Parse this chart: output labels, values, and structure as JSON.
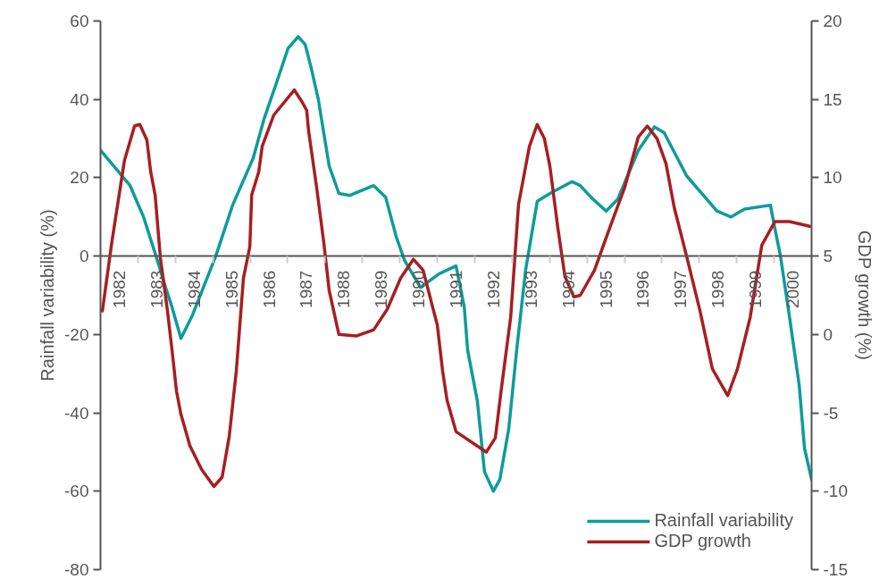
{
  "chart_data": {
    "type": "line",
    "xlabel": null,
    "ylabel": "Rainfall variability (%)",
    "y2label": "GDP growth (%)",
    "xlim": [
      1982,
      2001
    ],
    "xticks": [
      {
        "value": 1982.5,
        "label": "1982"
      },
      {
        "value": 1983.5,
        "label": "1983"
      },
      {
        "value": 1984.5,
        "label": "1984"
      },
      {
        "value": 1985.5,
        "label": "1985"
      },
      {
        "value": 1986.5,
        "label": "1986"
      },
      {
        "value": 1987.5,
        "label": "1987"
      },
      {
        "value": 1988.5,
        "label": "1988"
      },
      {
        "value": 1989.5,
        "label": "1989"
      },
      {
        "value": 1990.5,
        "label": "1990"
      },
      {
        "value": 1991.5,
        "label": "1991"
      },
      {
        "value": 1992.5,
        "label": "1992"
      },
      {
        "value": 1993.5,
        "label": "1993"
      },
      {
        "value": 1994.5,
        "label": "1994"
      },
      {
        "value": 1995.5,
        "label": "1995"
      },
      {
        "value": 1996.5,
        "label": "1996"
      },
      {
        "value": 1997.5,
        "label": "1997"
      },
      {
        "value": 1998.5,
        "label": "1998"
      },
      {
        "value": 1999.5,
        "label": "1999"
      },
      {
        "value": 2000.5,
        "label": "2000"
      },
      {
        "value": 1983,
        "label": null
      },
      {
        "value": 1984,
        "label": null
      },
      {
        "value": 1985,
        "label": null
      },
      {
        "value": 1986,
        "label": null
      },
      {
        "value": 1987,
        "label": null
      },
      {
        "value": 1988,
        "label": null
      },
      {
        "value": 1989,
        "label": null
      },
      {
        "value": 1990,
        "label": null
      },
      {
        "value": 1991,
        "label": null
      },
      {
        "value": 1992,
        "label": null
      },
      {
        "value": 1993,
        "label": null
      },
      {
        "value": 1994,
        "label": null
      },
      {
        "value": 1995,
        "label": null
      },
      {
        "value": 1996,
        "label": null
      },
      {
        "value": 1997,
        "label": null
      },
      {
        "value": 1998,
        "label": null
      },
      {
        "value": 1999,
        "label": null
      },
      {
        "value": 2000,
        "label": null
      }
    ],
    "ylim": [
      -80,
      60
    ],
    "yticks": [
      -80,
      -60,
      -40,
      -20,
      0,
      20,
      40,
      60
    ],
    "y2lim": [
      -15,
      20
    ],
    "y2ticks": [
      -15,
      -10,
      -5,
      0,
      5,
      10,
      15,
      20
    ],
    "grid": false,
    "legend": "bottom right",
    "marker": "none",
    "line_style": "solid",
    "series": [
      {
        "name": "Rainfall variability",
        "color": "#0e9c9a",
        "x": [
          1982.0,
          1982.79,
          1983.15,
          1983.5,
          1983.74,
          1983.91,
          1984.15,
          1984.46,
          1985.08,
          1985.53,
          1986.08,
          1986.37,
          1986.73,
          1987.01,
          1987.28,
          1987.47,
          1987.63,
          1987.82,
          1988.11,
          1988.37,
          1988.66,
          1989.3,
          1989.62,
          1989.9,
          1990.12,
          1990.55,
          1991.05,
          1991.5,
          1991.72,
          1991.81,
          1992.07,
          1992.26,
          1992.5,
          1992.67,
          1992.91,
          1993.12,
          1993.36,
          1993.67,
          1994.01,
          1994.6,
          1994.82,
          1995.11,
          1995.51,
          1995.82,
          1996.37,
          1996.8,
          1997.06,
          1997.66,
          1998.47,
          1998.85,
          1999.21,
          1999.9,
          2000.02,
          2000.17,
          2000.41,
          2000.67,
          2000.81,
          2001.0
        ],
        "values": [
          27,
          18,
          10,
          -0.5,
          -8,
          -13,
          -21,
          -15,
          0,
          13,
          25,
          35,
          45,
          53,
          56,
          54,
          48,
          40,
          23,
          16,
          15.5,
          18,
          15,
          5,
          -1,
          -8,
          -4.5,
          -2.5,
          -13,
          -24,
          -37,
          -55,
          -60,
          -57,
          -44,
          -24,
          -3.5,
          14,
          16,
          19,
          18,
          15,
          11.5,
          14.5,
          27,
          33,
          31.5,
          20.5,
          11.5,
          10,
          12,
          13,
          7,
          0,
          -15.5,
          -33,
          -49,
          -57
        ]
      },
      {
        "name": "GDP growth",
        "color": "#a81e22",
        "axis": "y2",
        "x": [
          1982.05,
          1982.31,
          1982.64,
          1982.91,
          1983.05,
          1983.24,
          1983.34,
          1983.46,
          1983.6,
          1983.79,
          1983.93,
          1984.03,
          1984.15,
          1984.39,
          1984.7,
          1985.03,
          1985.25,
          1985.44,
          1985.63,
          1985.82,
          1985.99,
          1986.04,
          1986.23,
          1986.32,
          1986.63,
          1987.18,
          1987.37,
          1987.51,
          1987.56,
          1987.78,
          1987.97,
          1988.11,
          1988.37,
          1988.83,
          1989.3,
          1989.66,
          1990.02,
          1990.36,
          1990.62,
          1991.0,
          1991.14,
          1991.26,
          1991.5,
          1992.31,
          1992.55,
          1992.72,
          1992.96,
          1993.17,
          1993.46,
          1993.67,
          1993.86,
          1994.01,
          1994.22,
          1994.41,
          1994.65,
          1994.82,
          1995.2,
          1995.56,
          1996.01,
          1996.37,
          1996.61,
          1996.87,
          1997.11,
          1997.33,
          1997.66,
          1998.02,
          1998.35,
          1998.76,
          1999.02,
          1999.36,
          1999.67,
          2000.02,
          2000.41,
          2000.95
        ],
        "values": [
          1.5,
          6,
          11.1,
          13.3,
          13.4,
          12.4,
          10.4,
          8.9,
          4.9,
          1.5,
          -1.4,
          -3.6,
          -5.1,
          -7.1,
          -8.6,
          -9.7,
          -9.1,
          -6.5,
          -2.3,
          3.6,
          5.6,
          8.9,
          10.4,
          12,
          14,
          15.6,
          14.9,
          14.3,
          13,
          9.3,
          5.8,
          2.8,
          0,
          -0.1,
          0.3,
          1.6,
          3.6,
          4.8,
          4.1,
          0.6,
          -2.3,
          -4.2,
          -6.2,
          -7.5,
          -6.6,
          -3.3,
          1.1,
          8.3,
          12,
          13.4,
          12.5,
          10.7,
          6.8,
          3.7,
          2.4,
          2.5,
          4.1,
          6.5,
          9.4,
          12.6,
          13.3,
          12.5,
          10.9,
          8.1,
          5,
          1.5,
          -2.2,
          -3.9,
          -2.2,
          1.1,
          5.7,
          7.2,
          7.2,
          6.9
        ]
      }
    ]
  }
}
